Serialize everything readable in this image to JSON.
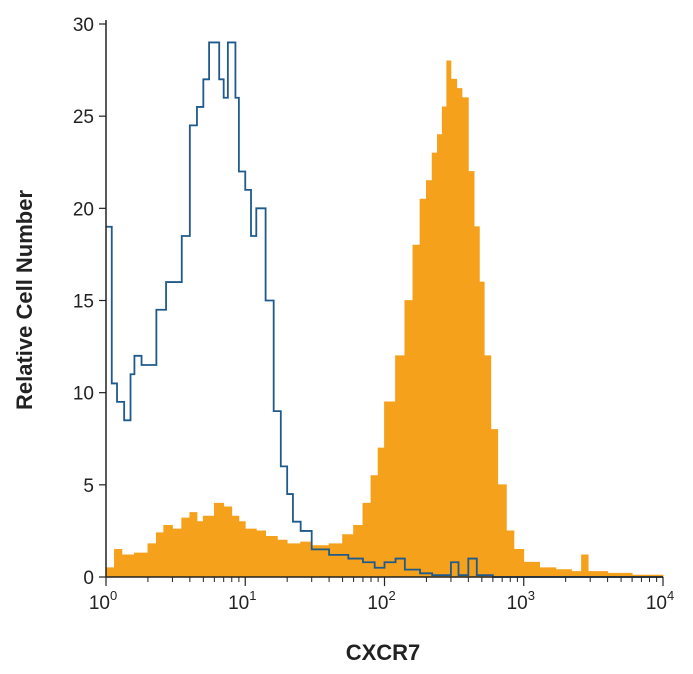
{
  "chart_data": {
    "type": "area",
    "title": "",
    "xlabel": "CXCR7",
    "ylabel": "Relative Cell Number",
    "x_scale": "log",
    "xlim": [
      1,
      10000
    ],
    "ylim": [
      0,
      30
    ],
    "grid": false,
    "legend": "none",
    "y_ticks": [
      0,
      5,
      10,
      15,
      20,
      25,
      30
    ],
    "x_ticks": [
      {
        "value": 1,
        "base": "10",
        "exp": "0"
      },
      {
        "value": 10,
        "base": "10",
        "exp": "1"
      },
      {
        "value": 100,
        "base": "10",
        "exp": "2"
      },
      {
        "value": 1000,
        "base": "10",
        "exp": "3"
      },
      {
        "value": 10000,
        "base": "10",
        "exp": "4"
      }
    ],
    "series": [
      {
        "style": "outline",
        "color": "#1f5a8c",
        "points": [
          [
            1.0,
            19
          ],
          [
            1.1,
            10.5
          ],
          [
            1.2,
            9.5
          ],
          [
            1.35,
            8.5
          ],
          [
            1.5,
            11
          ],
          [
            1.6,
            12
          ],
          [
            1.8,
            11.5
          ],
          [
            2.0,
            11.5
          ],
          [
            2.3,
            14.5
          ],
          [
            2.7,
            16
          ],
          [
            3.0,
            16
          ],
          [
            3.5,
            18.5
          ],
          [
            4.0,
            24.5
          ],
          [
            4.5,
            25.5
          ],
          [
            5.0,
            27
          ],
          [
            5.5,
            29
          ],
          [
            6.0,
            29
          ],
          [
            6.5,
            27
          ],
          [
            7.0,
            26
          ],
          [
            7.5,
            29
          ],
          [
            8.0,
            29
          ],
          [
            8.5,
            26
          ],
          [
            9.0,
            22
          ],
          [
            10.0,
            21
          ],
          [
            11.0,
            18.5
          ],
          [
            12.0,
            20
          ],
          [
            14.0,
            15
          ],
          [
            16.0,
            9
          ],
          [
            18.0,
            6
          ],
          [
            20.0,
            4.5
          ],
          [
            22.0,
            3
          ],
          [
            25.0,
            2.5
          ],
          [
            30.0,
            1.5
          ],
          [
            40.0,
            1.2
          ],
          [
            55.0,
            1.0
          ],
          [
            70.0,
            0.8
          ],
          [
            85.0,
            0.5
          ],
          [
            100.0,
            0.8
          ],
          [
            120.0,
            1.0
          ],
          [
            140.0,
            0.4
          ],
          [
            180.0,
            0.2
          ],
          [
            220.0,
            0.1
          ],
          [
            260.0,
            0.1
          ],
          [
            300.0,
            0.8
          ],
          [
            340.0,
            0.1
          ],
          [
            400.0,
            1.0
          ],
          [
            460.0,
            0.1
          ],
          [
            600.0,
            0.0
          ],
          [
            1000.0,
            0.0
          ],
          [
            10000.0,
            0.0
          ]
        ]
      },
      {
        "style": "filled",
        "color": "#f5a11c",
        "points": [
          [
            1.0,
            0.5
          ],
          [
            1.15,
            1.5
          ],
          [
            1.3,
            1.2
          ],
          [
            1.6,
            1.3
          ],
          [
            2.0,
            1.8
          ],
          [
            2.3,
            2.4
          ],
          [
            2.6,
            2.8
          ],
          [
            3.0,
            2.6
          ],
          [
            3.5,
            3.2
          ],
          [
            4.0,
            3.5
          ],
          [
            4.5,
            3.0
          ],
          [
            5.0,
            3.3
          ],
          [
            6.0,
            4.0
          ],
          [
            7.0,
            3.8
          ],
          [
            8.0,
            3.3
          ],
          [
            9.0,
            3.0
          ],
          [
            10.0,
            2.6
          ],
          [
            12.0,
            2.5
          ],
          [
            14.0,
            2.2
          ],
          [
            17.0,
            2.0
          ],
          [
            20.0,
            1.8
          ],
          [
            25.0,
            1.9
          ],
          [
            30.0,
            1.7
          ],
          [
            40.0,
            1.8
          ],
          [
            50.0,
            2.3
          ],
          [
            60.0,
            2.8
          ],
          [
            70.0,
            4.0
          ],
          [
            80.0,
            5.5
          ],
          [
            90.0,
            7.0
          ],
          [
            100.0,
            9.5
          ],
          [
            120.0,
            12.0
          ],
          [
            140.0,
            15.0
          ],
          [
            160.0,
            18.0
          ],
          [
            180.0,
            20.5
          ],
          [
            200.0,
            21.5
          ],
          [
            220.0,
            23.0
          ],
          [
            240.0,
            24.0
          ],
          [
            260.0,
            25.5
          ],
          [
            280.0,
            28.0
          ],
          [
            300.0,
            27.0
          ],
          [
            330.0,
            26.5
          ],
          [
            360.0,
            26.0
          ],
          [
            400.0,
            22.0
          ],
          [
            440.0,
            19.0
          ],
          [
            480.0,
            16.0
          ],
          [
            520.0,
            12.0
          ],
          [
            580.0,
            8.0
          ],
          [
            650.0,
            5.0
          ],
          [
            750.0,
            2.5
          ],
          [
            850.0,
            1.5
          ],
          [
            1000.0,
            0.8
          ],
          [
            1300.0,
            0.5
          ],
          [
            1700.0,
            0.4
          ],
          [
            2200.0,
            0.3
          ],
          [
            2600.0,
            1.2
          ],
          [
            2900.0,
            0.3
          ],
          [
            4000.0,
            0.2
          ],
          [
            6000.0,
            0.1
          ],
          [
            10000.0,
            0.0
          ]
        ]
      }
    ]
  }
}
